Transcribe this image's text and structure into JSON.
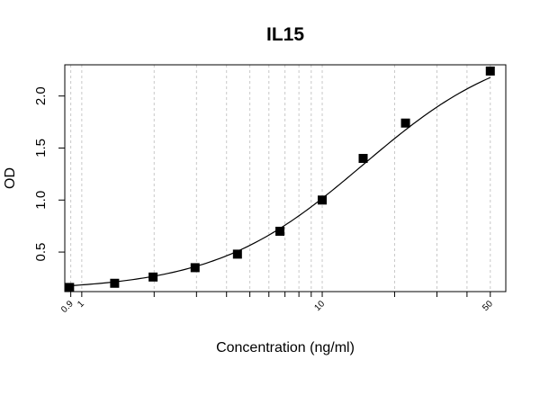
{
  "chart_data": {
    "type": "scatter",
    "title": "IL15",
    "xlabel": "Concentration (ng/ml)",
    "ylabel": "OD",
    "x_scale": "log",
    "xlim": [
      0.85,
      58
    ],
    "ylim": [
      0.12,
      2.3
    ],
    "x_tick_labels": [
      {
        "value": 0.9,
        "label": "0.9"
      },
      {
        "value": 1,
        "label": "1"
      },
      {
        "value": 10,
        "label": "10"
      },
      {
        "value": 50,
        "label": "50"
      }
    ],
    "y_ticks": [
      {
        "value": 0.5,
        "label": "0.5"
      },
      {
        "value": 1.0,
        "label": "1.0"
      },
      {
        "value": 1.5,
        "label": "1.5"
      },
      {
        "value": 2.0,
        "label": "2.0"
      }
    ],
    "x_gridlines": [
      0.9,
      1,
      2,
      3,
      4,
      5,
      6,
      7,
      8,
      9,
      10,
      20,
      30,
      40,
      50
    ],
    "grid": "vertical dashed",
    "series": [
      {
        "marker": "square",
        "color": "#000000",
        "x": [
          0.89,
          1.37,
          1.98,
          2.96,
          4.44,
          6.67,
          10.0,
          14.8,
          22.2,
          50.0
        ],
        "y": [
          0.16,
          0.2,
          0.26,
          0.35,
          0.48,
          0.7,
          1.0,
          1.4,
          1.74,
          2.24
        ]
      }
    ],
    "fit_curve": {
      "model": "4PL",
      "bottom": 0.13,
      "top": 2.55,
      "ec50": 14.8,
      "hill": 1.4
    }
  }
}
